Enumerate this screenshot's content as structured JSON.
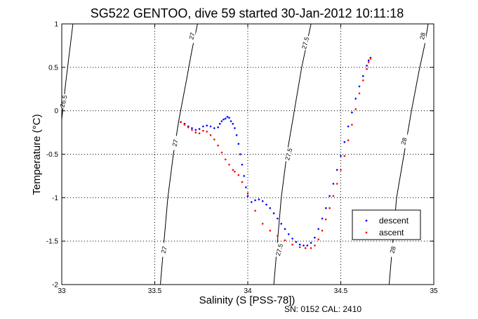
{
  "chart_data": {
    "type": "scatter",
    "title": "SG522 GENTOO, dive 59 started 30-Jan-2012 10:11:18",
    "xlabel": "Salinity (S [PSS-78])",
    "ylabel": "Temperature (°C)",
    "xlim": [
      33,
      35
    ],
    "ylim": [
      -2,
      1
    ],
    "xticks": [
      "33",
      "33.5",
      "34",
      "34.5",
      "35"
    ],
    "yticks": [
      "1",
      "0.5",
      "0",
      "-0.5",
      "-1",
      "-1.5",
      "-2"
    ],
    "grid": true,
    "legend_position": "lower-right",
    "footer": "SN: 0152  CAL: 2410",
    "series": [
      {
        "name": "descent",
        "color": "#0000ff",
        "points": [
          [
            33.64,
            -0.13
          ],
          [
            33.66,
            -0.15
          ],
          [
            33.68,
            -0.18
          ],
          [
            33.7,
            -0.2
          ],
          [
            33.72,
            -0.22
          ],
          [
            33.74,
            -0.21
          ],
          [
            33.76,
            -0.18
          ],
          [
            33.78,
            -0.17
          ],
          [
            33.8,
            -0.18
          ],
          [
            33.82,
            -0.2
          ],
          [
            33.84,
            -0.19
          ],
          [
            33.85,
            -0.15
          ],
          [
            33.86,
            -0.12
          ],
          [
            33.87,
            -0.1
          ],
          [
            33.88,
            -0.09
          ],
          [
            33.89,
            -0.07
          ],
          [
            33.9,
            -0.08
          ],
          [
            33.91,
            -0.12
          ],
          [
            33.92,
            -0.15
          ],
          [
            33.93,
            -0.2
          ],
          [
            33.94,
            -0.28
          ],
          [
            33.95,
            -0.38
          ],
          [
            33.96,
            -0.5
          ],
          [
            33.97,
            -0.62
          ],
          [
            33.98,
            -0.75
          ],
          [
            33.99,
            -0.88
          ],
          [
            34.0,
            -0.98
          ],
          [
            34.02,
            -1.05
          ],
          [
            34.04,
            -1.03
          ],
          [
            34.06,
            -1.02
          ],
          [
            34.08,
            -1.04
          ],
          [
            34.1,
            -1.08
          ],
          [
            34.12,
            -1.12
          ],
          [
            34.14,
            -1.18
          ],
          [
            34.16,
            -1.24
          ],
          [
            34.18,
            -1.3
          ],
          [
            34.2,
            -1.36
          ],
          [
            34.22,
            -1.42
          ],
          [
            34.24,
            -1.47
          ],
          [
            34.26,
            -1.51
          ],
          [
            34.28,
            -1.54
          ],
          [
            34.3,
            -1.55
          ],
          [
            34.32,
            -1.55
          ],
          [
            34.34,
            -1.52
          ],
          [
            34.36,
            -1.46
          ],
          [
            34.38,
            -1.36
          ],
          [
            34.4,
            -1.24
          ],
          [
            34.42,
            -1.12
          ],
          [
            34.44,
            -0.98
          ],
          [
            34.46,
            -0.84
          ],
          [
            34.48,
            -0.68
          ],
          [
            34.5,
            -0.52
          ],
          [
            34.52,
            -0.36
          ],
          [
            34.54,
            -0.18
          ],
          [
            34.56,
            -0.02
          ],
          [
            34.58,
            0.14
          ],
          [
            34.6,
            0.28
          ],
          [
            34.62,
            0.4
          ],
          [
            34.64,
            0.52
          ],
          [
            34.65,
            0.58
          ],
          [
            34.66,
            0.61
          ]
        ]
      },
      {
        "name": "ascent",
        "color": "#ff0000",
        "points": [
          [
            33.64,
            -0.13
          ],
          [
            33.66,
            -0.16
          ],
          [
            33.68,
            -0.19
          ],
          [
            33.7,
            -0.22
          ],
          [
            33.72,
            -0.25
          ],
          [
            33.74,
            -0.26
          ],
          [
            33.76,
            -0.23
          ],
          [
            33.78,
            -0.24
          ],
          [
            33.8,
            -0.28
          ],
          [
            33.82,
            -0.33
          ],
          [
            33.84,
            -0.4
          ],
          [
            33.86,
            -0.48
          ],
          [
            33.88,
            -0.56
          ],
          [
            33.9,
            -0.62
          ],
          [
            33.92,
            -0.68
          ],
          [
            33.93,
            -0.7
          ],
          [
            33.95,
            -0.74
          ],
          [
            33.97,
            -0.82
          ],
          [
            34.0,
            -0.95
          ],
          [
            34.04,
            -1.15
          ],
          [
            34.08,
            -1.3
          ],
          [
            34.12,
            -1.38
          ],
          [
            34.16,
            -1.44
          ],
          [
            34.2,
            -1.49
          ],
          [
            34.24,
            -1.54
          ],
          [
            34.28,
            -1.57
          ],
          [
            34.31,
            -1.58
          ],
          [
            34.34,
            -1.58
          ],
          [
            34.36,
            -1.55
          ],
          [
            34.38,
            -1.48
          ],
          [
            34.4,
            -1.38
          ],
          [
            34.42,
            -1.25
          ],
          [
            34.44,
            -1.12
          ],
          [
            34.46,
            -0.98
          ],
          [
            34.48,
            -0.84
          ],
          [
            34.5,
            -0.68
          ],
          [
            34.52,
            -0.52
          ],
          [
            34.54,
            -0.34
          ],
          [
            34.56,
            -0.16
          ],
          [
            34.58,
            0.02
          ],
          [
            34.6,
            0.2
          ],
          [
            34.62,
            0.35
          ],
          [
            34.64,
            0.48
          ],
          [
            34.65,
            0.56
          ],
          [
            34.66,
            0.6
          ]
        ]
      }
    ],
    "density_contours": [
      {
        "label": "26.5",
        "points": [
          [
            33.0,
            -0.1
          ],
          [
            33.02,
            0.3
          ],
          [
            33.04,
            0.65
          ],
          [
            33.06,
            1.0
          ]
        ],
        "label_positions": [
          [
            33.01,
            0.11
          ]
        ]
      },
      {
        "label": "27",
        "points": [
          [
            33.53,
            -2.0
          ],
          [
            33.55,
            -1.5
          ],
          [
            33.57,
            -1.0
          ],
          [
            33.6,
            -0.5
          ],
          [
            33.63,
            -0.1
          ],
          [
            33.67,
            0.35
          ],
          [
            33.7,
            0.7
          ],
          [
            33.73,
            1.0
          ]
        ],
        "label_positions": [
          [
            33.55,
            -1.6
          ],
          [
            33.61,
            -0.37
          ],
          [
            33.7,
            0.86
          ]
        ]
      },
      {
        "label": "27.5",
        "points": [
          [
            34.14,
            -2.0
          ],
          [
            34.16,
            -1.5
          ],
          [
            34.18,
            -1.0
          ],
          [
            34.21,
            -0.5
          ],
          [
            34.25,
            0.0
          ],
          [
            34.29,
            0.5
          ],
          [
            34.32,
            0.8
          ],
          [
            34.34,
            1.0
          ]
        ],
        "label_positions": [
          [
            34.17,
            -1.6
          ],
          [
            34.22,
            -0.5
          ],
          [
            34.31,
            0.78
          ]
        ]
      },
      {
        "label": "28",
        "points": [
          [
            34.76,
            -2.0
          ],
          [
            34.78,
            -1.5
          ],
          [
            34.8,
            -1.0
          ],
          [
            34.84,
            -0.5
          ],
          [
            34.88,
            0.0
          ],
          [
            34.92,
            0.45
          ],
          [
            34.95,
            0.75
          ],
          [
            34.97,
            1.0
          ]
        ],
        "label_positions": [
          [
            34.78,
            -1.6
          ],
          [
            34.84,
            -0.35
          ],
          [
            34.94,
            0.86
          ]
        ]
      }
    ]
  }
}
